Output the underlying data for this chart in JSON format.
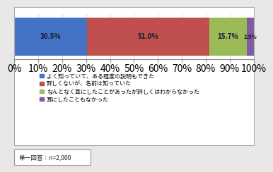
{
  "values": [
    30.5,
    51.0,
    15.7,
    2.9
  ],
  "colors": [
    "#4472c4",
    "#c0504d",
    "#9bbb59",
    "#7f5ca2"
  ],
  "labels": [
    "よく知っていて、ある程度の説明もできた",
    "詳しくないが、名前は知っていた",
    "なんとなく耳にしたことがあったが詳しくはわからなかった",
    "耳にしたこともなかった"
  ],
  "note": "単一回答：n=2,000",
  "bar_text": [
    "30.5%",
    "51.0%",
    "15.7%",
    "2.9%"
  ],
  "xticks": [
    0,
    10,
    20,
    30,
    40,
    50,
    60,
    70,
    80,
    90,
    100
  ],
  "xtick_labels": [
    "0%",
    "10%",
    "20%",
    "30%",
    "40%",
    "50%",
    "60%",
    "70%",
    "80%",
    "90%",
    "100%"
  ],
  "outer_bg": "#e8e8e8",
  "inner_bg": "#ffffff",
  "text_color": "#1a1a2e",
  "border_color": "#aaaaaa"
}
